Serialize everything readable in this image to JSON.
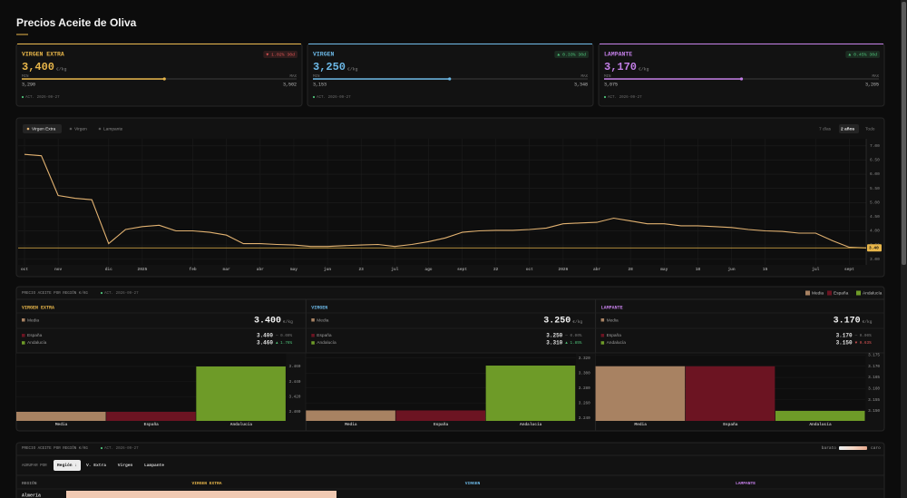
{
  "header": {
    "title": "Precios Aceite de Oliva"
  },
  "cards": [
    {
      "name": "VIRGEN EXTRA",
      "color": "#e8b64a",
      "change": "▼ 1.02% 30d",
      "badge_color": "#e05555",
      "price": {
        "value": 3400,
        "label": "3,400"
      },
      "unit": "€/kg",
      "min_label": "MIN",
      "min": {
        "value": 3290,
        "label": "3,290"
      },
      "max_label": "MAX",
      "max": {
        "value": 3502,
        "label": "3,502"
      },
      "updated": "ACT. 2026-09-27"
    },
    {
      "name": "VIRGEN",
      "color": "#6cb8e6",
      "change": "▲ 0.33% 30d",
      "badge_color": "#4fc27a",
      "price": {
        "value": 3250,
        "label": "3,250"
      },
      "unit": "€/kg",
      "min_label": "MIN",
      "min": {
        "value": 3153,
        "label": "3,153"
      },
      "max_label": "MAX",
      "max": {
        "value": 3348,
        "label": "3,348"
      },
      "updated": "ACT. 2026-09-27"
    },
    {
      "name": "LAMPANTE",
      "color": "#c27ee6",
      "change": "▲ 0.45% 30d",
      "badge_color": "#4fc27a",
      "price": {
        "value": 3170,
        "label": "3,170"
      },
      "unit": "€/kg",
      "min_label": "MIN",
      "min": {
        "value": 3075,
        "label": "3,075"
      },
      "max_label": "MAX",
      "max": {
        "value": 3265,
        "label": "3,265"
      },
      "updated": "ACT. 2026-09-27"
    }
  ],
  "chart_data": {
    "type": "line",
    "tabs": [
      "Virgen Extra",
      "Virgen",
      "Lampante"
    ],
    "ranges": [
      "7 días",
      "2 años",
      "Todo"
    ],
    "series": [
      {
        "name": "Virgen Extra",
        "color": "#e2b271",
        "values": [
          6.7,
          6.65,
          5.25,
          5.15,
          5.1,
          3.55,
          4.05,
          4.15,
          4.2,
          4.0,
          4.0,
          3.95,
          3.85,
          3.55,
          3.55,
          3.52,
          3.5,
          3.45,
          3.45,
          3.48,
          3.5,
          3.52,
          3.45,
          3.52,
          3.62,
          3.75,
          3.95,
          4.0,
          4.02,
          4.02,
          4.05,
          4.1,
          4.25,
          4.28,
          4.3,
          4.45,
          4.35,
          4.25,
          4.25,
          4.18,
          4.18,
          4.15,
          4.12,
          4.05,
          4.0,
          3.98,
          3.92,
          3.92,
          3.65,
          3.42,
          3.4
        ]
      }
    ],
    "xlim": [
      0,
      50
    ],
    "xticks": [
      {
        "value": 0,
        "label": "oct"
      },
      {
        "value": 2,
        "label": "nov"
      },
      {
        "value": 5,
        "label": "dic"
      },
      {
        "value": 7,
        "label": "2025"
      },
      {
        "value": 10,
        "label": "feb"
      },
      {
        "value": 12,
        "label": "mar"
      },
      {
        "value": 14,
        "label": "abr"
      },
      {
        "value": 16,
        "label": "may"
      },
      {
        "value": 18,
        "label": "jun"
      },
      {
        "value": 20,
        "label": "23"
      },
      {
        "value": 22,
        "label": "jul"
      },
      {
        "value": 24,
        "label": "ago"
      },
      {
        "value": 26,
        "label": "sept"
      },
      {
        "value": 28,
        "label": "22"
      },
      {
        "value": 30,
        "label": "oct"
      },
      {
        "value": 32,
        "label": "2026"
      },
      {
        "value": 34,
        "label": "abr"
      },
      {
        "value": 36,
        "label": "28"
      },
      {
        "value": 38,
        "label": "may"
      },
      {
        "value": 40,
        "label": "18"
      },
      {
        "value": 42,
        "label": "jun"
      },
      {
        "value": 44,
        "label": "15"
      },
      {
        "value": 47,
        "label": "jul"
      },
      {
        "value": 49,
        "label": "sept"
      }
    ],
    "ylim": [
      2.8,
      7.25
    ],
    "yticks": [
      {
        "value": 3.0,
        "label": "3.00"
      },
      {
        "value": 3.5,
        "label": "3.50"
      },
      {
        "value": 4.0,
        "label": "4.00"
      },
      {
        "value": 4.5,
        "label": "4.50"
      },
      {
        "value": 5.0,
        "label": "5.00"
      },
      {
        "value": 5.5,
        "label": "5.50"
      },
      {
        "value": 6.0,
        "label": "6.00"
      },
      {
        "value": 6.5,
        "label": "6.50"
      },
      {
        "value": 7.0,
        "label": "7.00"
      }
    ],
    "current": {
      "value": 3.4,
      "label": "3.40"
    },
    "grid": true
  },
  "regions": {
    "title": "PRECIO ACEITE POR REGIÓN €/KG",
    "updated": "ACT. 2026-09-27",
    "unit": "€/kg",
    "legend": [
      {
        "name": "Media",
        "color": "#a88262"
      },
      {
        "name": "España",
        "color": "#6c1422"
      },
      {
        "name": "Andalucía",
        "color": "#6e9b28"
      }
    ],
    "columns": [
      {
        "name": "VIRGEN EXTRA",
        "chart": {
          "type": "bar",
          "categories": [
            "Media",
            "España",
            "Andalucía"
          ],
          "values": [
            3.4,
            3.4,
            3.46
          ],
          "value_labels": [
            "3.400",
            "3.400",
            "3.460"
          ],
          "changes": [
            "— 0.00%",
            "▲ 1.76%"
          ],
          "ylim": [
            3.388,
            3.478
          ],
          "yticks": [
            {
              "value": 3.4,
              "label": "3.400"
            },
            {
              "value": 3.42,
              "label": "3.420"
            },
            {
              "value": 3.44,
              "label": "3.440"
            },
            {
              "value": 3.46,
              "label": "3.460"
            }
          ]
        }
      },
      {
        "name": "VIRGEN",
        "chart": {
          "type": "bar",
          "categories": [
            "Media",
            "España",
            "Andalucía"
          ],
          "values": [
            3.25,
            3.25,
            3.31
          ],
          "value_labels": [
            "3.250",
            "3.250",
            "3.310"
          ],
          "changes": [
            "— 0.00%",
            "▲ 1.85%"
          ],
          "ylim": [
            3.236,
            3.327
          ],
          "yticks": [
            {
              "value": 3.24,
              "label": "3.240"
            },
            {
              "value": 3.26,
              "label": "3.260"
            },
            {
              "value": 3.28,
              "label": "3.280"
            },
            {
              "value": 3.3,
              "label": "3.300"
            },
            {
              "value": 3.32,
              "label": "3.320"
            }
          ]
        }
      },
      {
        "name": "LAMPANTE",
        "chart": {
          "type": "bar",
          "categories": [
            "Media",
            "España",
            "Andalucía"
          ],
          "values": [
            3.17,
            3.17,
            3.15
          ],
          "value_labels": [
            "3.170",
            "3.170",
            "3.150"
          ],
          "changes": [
            "— 0.00%",
            "▼ 0.63%"
          ],
          "ylim": [
            3.1455,
            3.176
          ],
          "yticks": [
            {
              "value": 3.15,
              "label": "3.150"
            },
            {
              "value": 3.155,
              "label": "3.155"
            },
            {
              "value": 3.16,
              "label": "3.160"
            },
            {
              "value": 3.165,
              "label": "3.165"
            },
            {
              "value": 3.17,
              "label": "3.170"
            },
            {
              "value": 3.175,
              "label": "3.175"
            }
          ]
        }
      }
    ]
  },
  "table": {
    "title": "PRECIO ACEITE POR REGIÓN €/KG",
    "updated": "ACT. 2026-09-27",
    "scale_low": "barato",
    "scale_high": "caro",
    "group_label": "AGRUPAR POR",
    "group_buttons": [
      "Región ↓",
      "V. Extra",
      "Virgen",
      "Lampante"
    ],
    "columns": [
      "REGIÓN",
      "VIRGEN EXTRA",
      "VIRGEN",
      "LAMPANTE"
    ],
    "rows": [
      [
        "Almería"
      ]
    ]
  }
}
